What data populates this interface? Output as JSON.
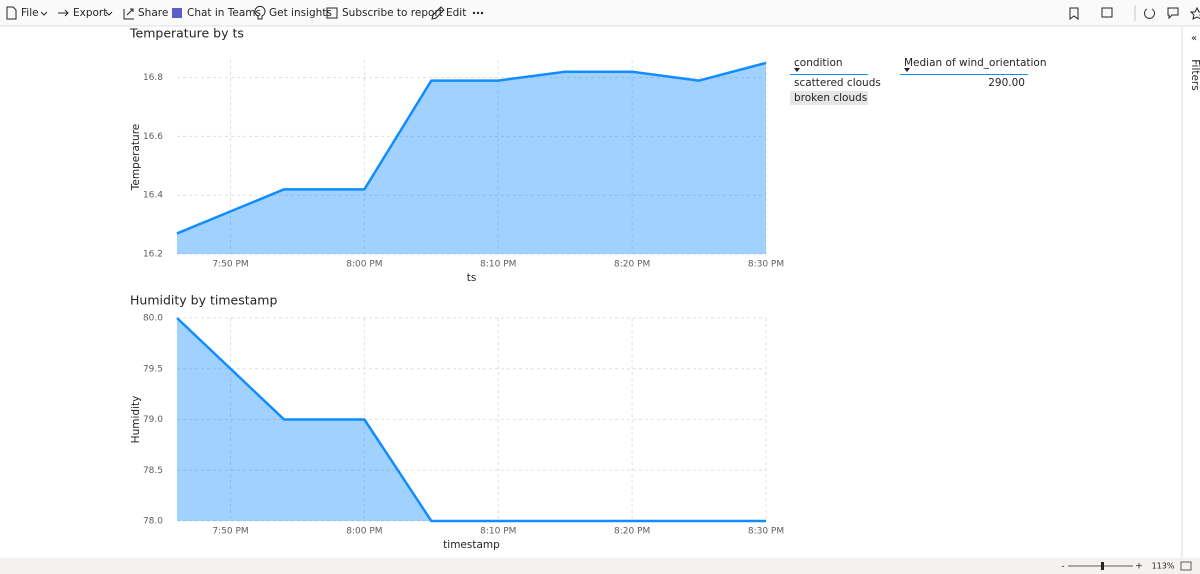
{
  "toolbar": {
    "items": [
      "File",
      "Export",
      "Share",
      "Chat in Teams",
      "Get insights",
      "Subscribe to report",
      "Edit"
    ]
  },
  "chart_data": [
    {
      "type": "area",
      "title": "Temperature by ts",
      "x_label": "ts",
      "y_label": "Temperature",
      "x": [
        1186,
        1194,
        1200,
        1205,
        1210,
        1215,
        1220,
        1225,
        1230
      ],
      "values": [
        16.27,
        16.42,
        16.42,
        16.79,
        16.79,
        16.82,
        16.82,
        16.79,
        16.85
      ],
      "color": "#118dff",
      "xlim": [
        1186,
        1230
      ],
      "xticks": [
        {
          "value": 1190,
          "label": "7:50 PM"
        },
        {
          "value": 1200,
          "label": "8:00 PM"
        },
        {
          "value": 1210,
          "label": "8:10 PM"
        },
        {
          "value": 1220,
          "label": "8:20 PM"
        },
        {
          "value": 1230,
          "label": "8:30 PM"
        }
      ],
      "ylim": [
        16.2,
        16.86
      ],
      "yticks": [
        16.2,
        16.4,
        16.6,
        16.8
      ],
      "grid": true
    },
    {
      "type": "area",
      "title": "Humidity by timestamp",
      "x_label": "timestamp",
      "y_label": "Humidity",
      "x": [
        1186,
        1194,
        1200,
        1205,
        1210,
        1215,
        1220,
        1225,
        1230
      ],
      "values": [
        80,
        79,
        79,
        78,
        78,
        78,
        78,
        78,
        78
      ],
      "color": "#118dff",
      "xlim": [
        1186,
        1230
      ],
      "xticks": [
        {
          "value": 1190,
          "label": "7:50 PM"
        },
        {
          "value": 1200,
          "label": "8:00 PM"
        },
        {
          "value": 1210,
          "label": "8:10 PM"
        },
        {
          "value": 1220,
          "label": "8:20 PM"
        },
        {
          "value": 1230,
          "label": "8:30 PM"
        }
      ],
      "ylim": [
        78,
        80
      ],
      "yticks": [
        {
          "value": 78,
          "label": "78.0"
        },
        78.5,
        {
          "value": 79,
          "label": "79.0"
        },
        79.5,
        {
          "value": 80,
          "label": "80.0"
        }
      ],
      "grid": true
    }
  ],
  "tables": [
    {
      "header": "condition",
      "rows": [
        "scattered clouds",
        "broken clouds"
      ]
    },
    {
      "header": "Median of wind_orientation",
      "rows": [
        "290.00"
      ]
    }
  ],
  "side_pane": {
    "label": "Filters"
  },
  "status_bar": {
    "zoom": "113%"
  }
}
